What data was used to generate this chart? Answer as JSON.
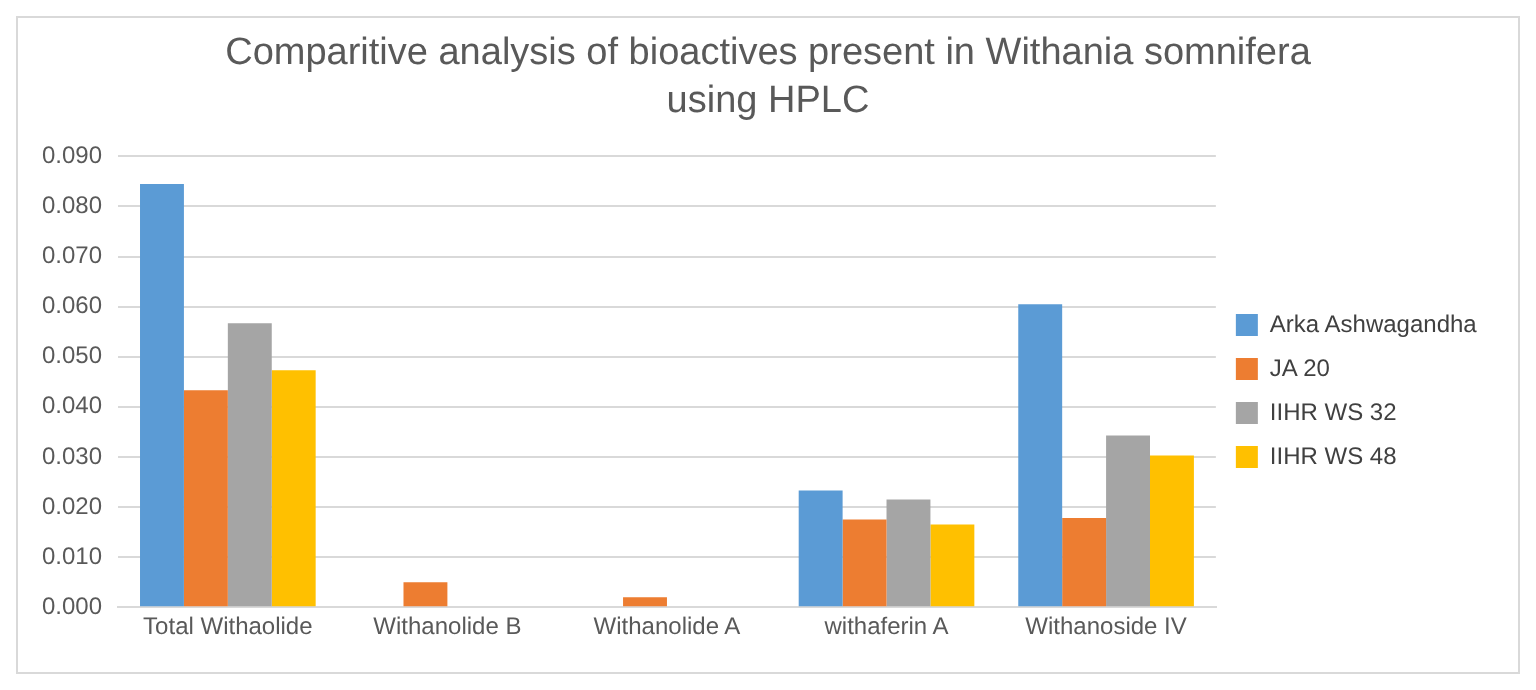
{
  "chart_data": {
    "type": "bar",
    "title": "Comparitive analysis of  bioactives present in Withania somnifera using HPLC",
    "categories": [
      "Total Withaolide",
      "Withanolide B",
      "Withanolide A",
      "withaferin A",
      "Withanoside IV"
    ],
    "series": [
      {
        "name": "Arka Ashwagandha",
        "color": "#5b9bd5",
        "values": [
          0.0845,
          0,
          0,
          0.0233,
          0.0605
        ]
      },
      {
        "name": "JA 20",
        "color": "#ed7d31",
        "values": [
          0.0433,
          0.005,
          0.002,
          0.0175,
          0.0178
        ]
      },
      {
        "name": "IIHR WS 32",
        "color": "#a5a5a5",
        "values": [
          0.0567,
          0,
          0,
          0.0215,
          0.0343
        ]
      },
      {
        "name": "IIHR WS 48",
        "color": "#ffc000",
        "values": [
          0.0473,
          0,
          0,
          0.0165,
          0.0303
        ]
      }
    ],
    "ylim": [
      0,
      0.09
    ],
    "yticks": [
      {
        "value": 0,
        "label": "0.000"
      },
      {
        "value": 0.01,
        "label": "0.010"
      },
      {
        "value": 0.02,
        "label": "0.020"
      },
      {
        "value": 0.03,
        "label": "0.030"
      },
      {
        "value": 0.04,
        "label": "0.040"
      },
      {
        "value": 0.05,
        "label": "0.050"
      },
      {
        "value": 0.06,
        "label": "0.060"
      },
      {
        "value": 0.07,
        "label": "0.070"
      },
      {
        "value": 0.08,
        "label": "0.080"
      },
      {
        "value": 0.09,
        "label": "0.090"
      }
    ],
    "grid": "y",
    "legend": "right"
  }
}
